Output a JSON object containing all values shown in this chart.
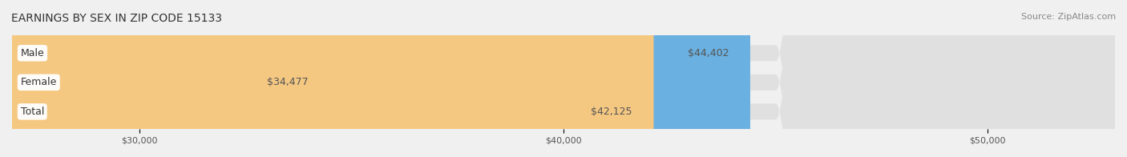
{
  "title": "EARNINGS BY SEX IN ZIP CODE 15133",
  "source": "Source: ZipAtlas.com",
  "categories": [
    "Male",
    "Female",
    "Total"
  ],
  "values": [
    44402,
    34477,
    42125
  ],
  "bar_colors": [
    "#6ab0e0",
    "#f4a7c0",
    "#f5c882"
  ],
  "label_bg_colors": [
    "#ffffff",
    "#ffffff",
    "#ffffff"
  ],
  "value_labels": [
    "$44,402",
    "$34,477",
    "$42,125"
  ],
  "xlim_min": 27000,
  "xlim_max": 53000,
  "xticks": [
    30000,
    40000,
    50000
  ],
  "xtick_labels": [
    "$30,000",
    "$40,000",
    "$50,000"
  ],
  "background_color": "#f0f0f0",
  "bar_background_color": "#e8e8e8",
  "title_fontsize": 10,
  "source_fontsize": 8,
  "bar_height": 0.55,
  "bar_label_fontsize": 9,
  "category_label_fontsize": 9,
  "tick_fontsize": 8
}
